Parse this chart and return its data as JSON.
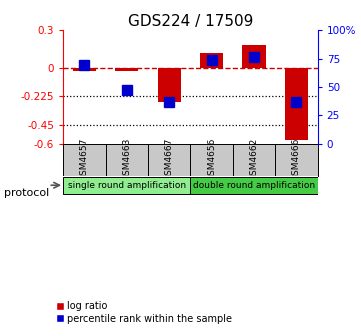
{
  "title": "GDS224 / 17509",
  "samples": [
    "GSM4657",
    "GSM4663",
    "GSM4667",
    "GSM4656",
    "GSM4662",
    "GSM4666"
  ],
  "log_ratios": [
    -0.02,
    -0.02,
    -0.27,
    0.12,
    0.18,
    -0.57
  ],
  "percentile_ranks": [
    69,
    47,
    37,
    74,
    76,
    37
  ],
  "ylim_left": [
    -0.6,
    0.3
  ],
  "ylim_right": [
    0,
    100
  ],
  "yticks_left": [
    0.3,
    0,
    -0.225,
    -0.45,
    -0.6
  ],
  "yticks_right": [
    100,
    75,
    50,
    25,
    0
  ],
  "ytick_labels_left": [
    "0.3",
    "0",
    "-0.225",
    "-0.45",
    "-0.6"
  ],
  "ytick_labels_right": [
    "100%",
    "75",
    "50",
    "25",
    "0"
  ],
  "hlines": [
    -0.225,
    -0.45
  ],
  "dashed_hline": 0,
  "bar_color_red": "#CC0000",
  "bar_color_blue": "#0000CC",
  "bar_width": 0.55,
  "marker_size": 7,
  "groups": [
    {
      "label": "single round amplification",
      "color": "#90EE90"
    },
    {
      "label": "double round amplification",
      "color": "#44CC44"
    }
  ],
  "protocol_label": "protocol",
  "legend_red": "log ratio",
  "legend_blue": "percentile rank within the sample",
  "bg_color": "#FFFFFF",
  "title_fontsize": 11,
  "tick_fontsize": 7.5,
  "sample_fontsize": 6.5,
  "legend_fontsize": 7,
  "proto_fontsize": 6.5
}
